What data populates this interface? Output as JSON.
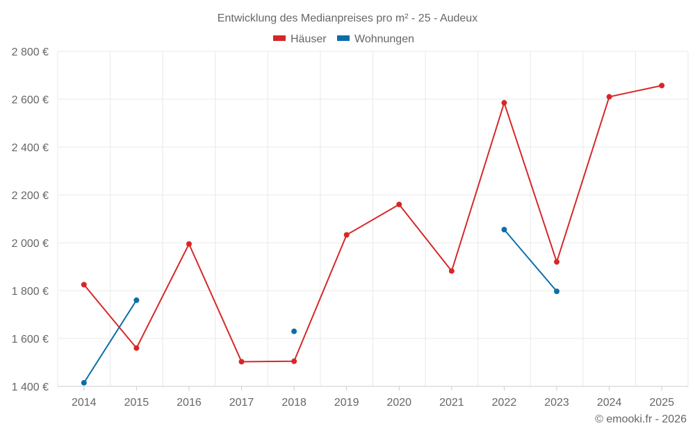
{
  "chart_data": {
    "type": "line",
    "title": "Entwicklung des Medianpreises pro m² - 25 - Audeux",
    "categories": [
      "2014",
      "2015",
      "2016",
      "2017",
      "2018",
      "2019",
      "2020",
      "2021",
      "2022",
      "2023",
      "2024",
      "2025"
    ],
    "ylim": [
      1400,
      2800
    ],
    "yticks": [
      1400,
      1600,
      1800,
      2000,
      2200,
      2400,
      2600,
      2800
    ],
    "ytick_labels": [
      "1 400 €",
      "1 600 €",
      "1 800 €",
      "2 000 €",
      "2 200 €",
      "2 400 €",
      "2 600 €",
      "2 800 €"
    ],
    "grid": true,
    "legend_position": "top-center",
    "series": [
      {
        "name": "Häuser",
        "color": "#d62728",
        "values": [
          1825,
          1560,
          1995,
          1503,
          1505,
          2033,
          2160,
          1882,
          2585,
          1920,
          2610,
          2657
        ]
      },
      {
        "name": "Wohnungen",
        "color": "#0b6ea8",
        "values": [
          1415,
          1760,
          null,
          null,
          1630,
          null,
          null,
          null,
          2055,
          1797,
          null,
          null
        ]
      }
    ],
    "credit": "© emooki.fr - 2026"
  }
}
